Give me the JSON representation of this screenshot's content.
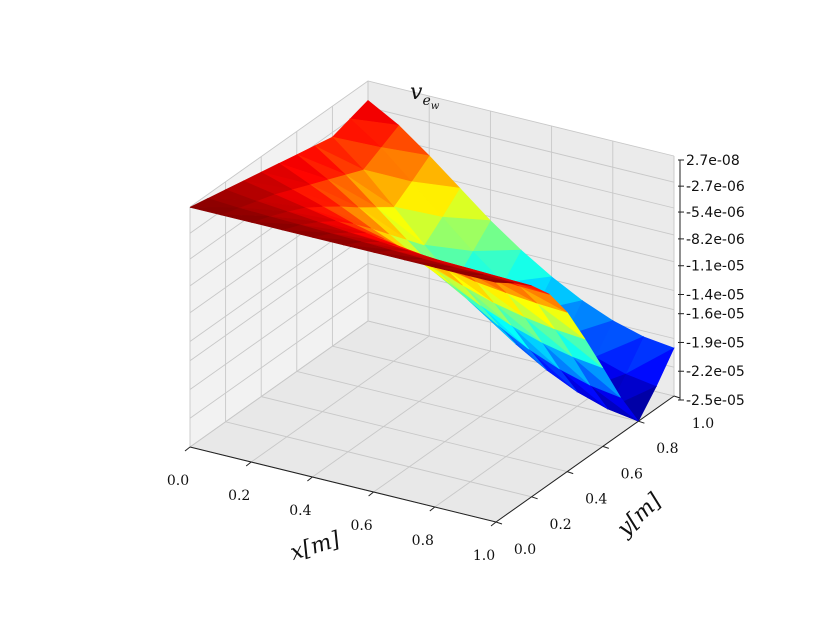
{
  "chart_data": {
    "type": "surface3d",
    "title": "v_{e_w}",
    "title_main": "v",
    "title_sub": "e",
    "title_subsub": "w",
    "xlabel": "x[m]",
    "ylabel": "y[m]",
    "xlim": [
      0,
      1
    ],
    "ylim": [
      0,
      1
    ],
    "zlim": [
      -2.5e-05,
      2.7e-08
    ],
    "x_ticks": [
      "0.0",
      "0.2",
      "0.4",
      "0.6",
      "0.8",
      "1.0"
    ],
    "y_ticks": [
      "0.0",
      "0.2",
      "0.4",
      "0.6",
      "0.8",
      "1.0"
    ],
    "z_ticks": [
      "2.7e-08",
      "-2.7e-06",
      "-5.4e-06",
      "-8.2e-06",
      "-1.1e-05",
      "-1.4e-05",
      "-1.6e-05",
      "-1.9e-05",
      "-2.2e-05",
      "-2.5e-05"
    ],
    "colormap": "jet",
    "grid": true,
    "x": [
      0.0,
      0.1,
      0.2,
      0.3,
      0.4,
      0.5,
      0.6,
      0.7,
      0.8,
      0.9,
      1.0
    ],
    "y": [
      0.0,
      0.1,
      0.2,
      0.3,
      0.4,
      0.5,
      0.6,
      0.7,
      0.8,
      0.9,
      1.0
    ],
    "z": [
      [
        0.0,
        0.0,
        0.0,
        0.0,
        0.0,
        0.0,
        0.0,
        0.0,
        0.0,
        0.0,
        0.0
      ],
      [
        -4e-07,
        -6e-07,
        -7e-07,
        -8e-07,
        -9e-07,
        -1e-06,
        -1.1e-06,
        -1.2e-06,
        -1.3e-06,
        -1.3e-06,
        -1.4e-06
      ],
      [
        -8e-07,
        -1.2e-06,
        -1.5e-06,
        -1.8e-06,
        -2.1e-06,
        -2.3e-06,
        -2.5e-06,
        -2.7e-06,
        -2.8e-06,
        -2.9e-06,
        -3e-06
      ],
      [
        -1.2e-06,
        -1.8e-06,
        -2.4e-06,
        -3e-06,
        -3.5e-06,
        -4e-06,
        -4.4e-06,
        -4.7e-06,
        -4.9e-06,
        -5.1e-06,
        -5.2e-06
      ],
      [
        -1.6e-06,
        -2.6e-06,
        -3.6e-06,
        -4.6e-06,
        -5.4e-06,
        -6.2e-06,
        -6.9e-06,
        -7.5e-06,
        -7.9e-06,
        -8.2e-06,
        -8.4e-06
      ],
      [
        -2e-06,
        -3.4e-06,
        -4.9e-06,
        -6.4e-06,
        -7.7e-06,
        -8.9e-06,
        -1e-05,
        -1.1e-05,
        -1.17e-05,
        -1.22e-05,
        -1.25e-05
      ],
      [
        -2.4e-06,
        -4.2e-06,
        -6.3e-06,
        -8.3e-06,
        -1.02e-05,
        -1.19e-05,
        -1.34e-05,
        -1.47e-05,
        -1.57e-05,
        -1.64e-05,
        -1.68e-05
      ],
      [
        -2.8e-06,
        -5e-06,
        -7.6e-06,
        -1.02e-05,
        -1.27e-05,
        -1.49e-05,
        -1.68e-05,
        -1.85e-05,
        -1.98e-05,
        -2.07e-05,
        -2.12e-05
      ],
      [
        -3.2e-06,
        -5.8e-06,
        -8.9e-06,
        -1.21e-05,
        -1.51e-05,
        -1.78e-05,
        -2.01e-05,
        -2.2e-05,
        -2.35e-05,
        -2.45e-05,
        -2.5e-05
      ],
      [
        -2.6e-06,
        -4.8e-06,
        -7.6e-06,
        -1.05e-05,
        -1.33e-05,
        -1.58e-05,
        -1.8e-05,
        -1.98e-05,
        -2.12e-05,
        -2.22e-05,
        -2.27e-05
      ],
      [
        -2e-06,
        -3.8e-06,
        -6.2e-06,
        -8.8e-06,
        -1.14e-05,
        -1.37e-05,
        -1.57e-05,
        -1.74e-05,
        -1.87e-05,
        -1.96e-05,
        -2e-05
      ]
    ]
  }
}
